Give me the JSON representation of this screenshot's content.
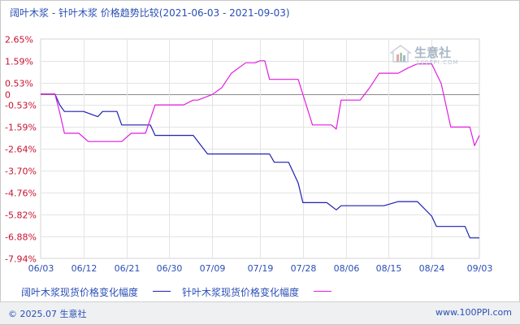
{
  "title": "阔叶木浆 - 针叶木浆 价格趋势比较(2021-06-03 - 2021-09-03)",
  "watermark": {
    "name": "生意社",
    "url": "100PPI.COM"
  },
  "footer": {
    "copyright": "© 2025.07 生意社",
    "site": "www.100PPI.com"
  },
  "chart_data": {
    "type": "line",
    "title": "阔叶木浆 - 针叶木浆 价格趋势比较(2021-06-03 - 2021-09-03)",
    "x_tick_labels": [
      "06/03",
      "06/12",
      "06/21",
      "06/30",
      "07/09",
      "07/19",
      "07/28",
      "08/06",
      "08/15",
      "08/24",
      "09/03"
    ],
    "y_tick_labels": [
      "2.65%",
      "1.59%",
      "0.53%",
      "0",
      "-0.53%",
      "-1.59%",
      "-2.64%",
      "-3.70%",
      "-4.76%",
      "-5.82%",
      "-6.88%",
      "-7.94%"
    ],
    "ylim": [
      -7.94,
      2.65
    ],
    "grid": true,
    "legend_position": "bottom",
    "series": [
      {
        "name": "阔叶木浆现货价格变化幅度",
        "color": "#1f1fb4",
        "points": [
          [
            "06/03",
            0
          ],
          [
            "06/06",
            0
          ],
          [
            "06/07",
            -0.53
          ],
          [
            "06/08",
            -0.85
          ],
          [
            "06/12",
            -0.85
          ],
          [
            "06/15",
            -1.1
          ],
          [
            "06/16",
            -0.85
          ],
          [
            "06/19",
            -0.85
          ],
          [
            "06/20",
            -1.5
          ],
          [
            "06/26",
            -1.5
          ],
          [
            "06/27",
            -2.0
          ],
          [
            "07/05",
            -2.0
          ],
          [
            "07/08",
            -2.9
          ],
          [
            "07/17",
            -2.9
          ],
          [
            "07/21",
            -2.9
          ],
          [
            "07/22",
            -3.3
          ],
          [
            "07/25",
            -3.3
          ],
          [
            "07/27",
            -4.3
          ],
          [
            "07/28",
            -5.25
          ],
          [
            "08/02",
            -5.25
          ],
          [
            "08/04",
            -5.6
          ],
          [
            "08/05",
            -5.4
          ],
          [
            "08/14",
            -5.4
          ],
          [
            "08/17",
            -5.2
          ],
          [
            "08/21",
            -5.2
          ],
          [
            "08/24",
            -5.9
          ],
          [
            "08/25",
            -6.4
          ],
          [
            "08/31",
            -6.4
          ],
          [
            "09/01",
            -6.95
          ],
          [
            "09/03",
            -6.95
          ]
        ]
      },
      {
        "name": "针叶木浆现货价格变化幅度",
        "color": "#e01ee0",
        "points": [
          [
            "06/03",
            0
          ],
          [
            "06/06",
            0
          ],
          [
            "06/07",
            -0.9
          ],
          [
            "06/08",
            -1.9
          ],
          [
            "06/11",
            -1.9
          ],
          [
            "06/13",
            -2.3
          ],
          [
            "06/20",
            -2.3
          ],
          [
            "06/22",
            -1.9
          ],
          [
            "06/25",
            -1.9
          ],
          [
            "06/27",
            -0.53
          ],
          [
            "06/29",
            -0.53
          ],
          [
            "07/03",
            -0.53
          ],
          [
            "07/05",
            -0.3
          ],
          [
            "07/06",
            -0.3
          ],
          [
            "07/09",
            -0.03
          ],
          [
            "07/11",
            0.3
          ],
          [
            "07/13",
            1.0
          ],
          [
            "07/16",
            1.5
          ],
          [
            "07/18",
            1.5
          ],
          [
            "07/19",
            1.6
          ],
          [
            "07/20",
            1.6
          ],
          [
            "07/21",
            0.7
          ],
          [
            "07/27",
            0.7
          ],
          [
            "07/30",
            -1.5
          ],
          [
            "08/03",
            -1.5
          ],
          [
            "08/04",
            -1.7
          ],
          [
            "08/05",
            -0.3
          ],
          [
            "08/09",
            -0.3
          ],
          [
            "08/11",
            0.3
          ],
          [
            "08/13",
            1.0
          ],
          [
            "08/17",
            1.0
          ],
          [
            "08/19",
            1.25
          ],
          [
            "08/21",
            1.45
          ],
          [
            "08/24",
            1.45
          ],
          [
            "08/26",
            0.5
          ],
          [
            "08/28",
            -1.6
          ],
          [
            "09/01",
            -1.6
          ],
          [
            "09/02",
            -2.5
          ],
          [
            "09/03",
            -2.0
          ]
        ]
      }
    ]
  }
}
